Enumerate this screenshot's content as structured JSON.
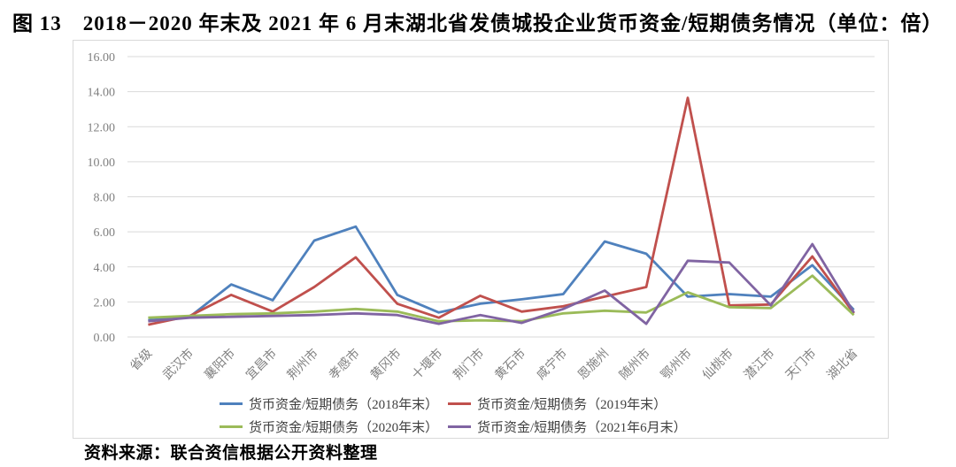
{
  "title": {
    "figure_label": "图 13",
    "text": "2018－2020 年末及 2021 年 6 月末湖北省发债城投企业货币资金/短期债务情况（单位：倍）"
  },
  "source_note": "资料来源：联合资信根据公开资料整理",
  "chart_data": {
    "type": "line",
    "categories": [
      "省级",
      "武汉市",
      "襄阳市",
      "宜昌市",
      "荆州市",
      "孝感市",
      "黄冈市",
      "十堰市",
      "荆门市",
      "黄石市",
      "咸宁市",
      "恩施州",
      "随州市",
      "鄂州市",
      "仙桃市",
      "潜江市",
      "天门市",
      "湖北省"
    ],
    "series": [
      {
        "name": "货币资金/短期债务（2018年末）",
        "color": "#4F81BD",
        "values": [
          0.95,
          1.15,
          3.0,
          2.1,
          5.5,
          6.3,
          2.4,
          1.4,
          1.9,
          2.15,
          2.45,
          5.45,
          4.75,
          2.3,
          2.45,
          2.3,
          4.1,
          1.55
        ]
      },
      {
        "name": "货币资金/短期债务（2019年末）",
        "color": "#C0504D",
        "values": [
          0.7,
          1.2,
          2.4,
          1.45,
          2.85,
          4.55,
          1.9,
          1.1,
          2.35,
          1.45,
          1.75,
          2.3,
          2.85,
          13.65,
          1.8,
          1.85,
          4.6,
          1.35
        ]
      },
      {
        "name": "货币资金/短期债务（2020年末）",
        "color": "#9BBB59",
        "values": [
          1.1,
          1.2,
          1.3,
          1.35,
          1.45,
          1.6,
          1.45,
          0.9,
          0.95,
          0.9,
          1.35,
          1.5,
          1.4,
          2.55,
          1.7,
          1.65,
          3.5,
          1.25
        ]
      },
      {
        "name": "货币资金/短期债务（2021年6月末）",
        "color": "#8064A2",
        "values": [
          0.9,
          1.1,
          1.15,
          1.2,
          1.25,
          1.35,
          1.25,
          0.75,
          1.25,
          0.8,
          1.6,
          2.65,
          0.75,
          4.35,
          4.25,
          1.8,
          5.3,
          1.4
        ]
      }
    ],
    "ylim": [
      0,
      16
    ],
    "ytick_step": 2,
    "grid": true,
    "legend_position": "bottom",
    "gridline_color": "#d9d9d9",
    "axis_label_color": "#808080"
  }
}
